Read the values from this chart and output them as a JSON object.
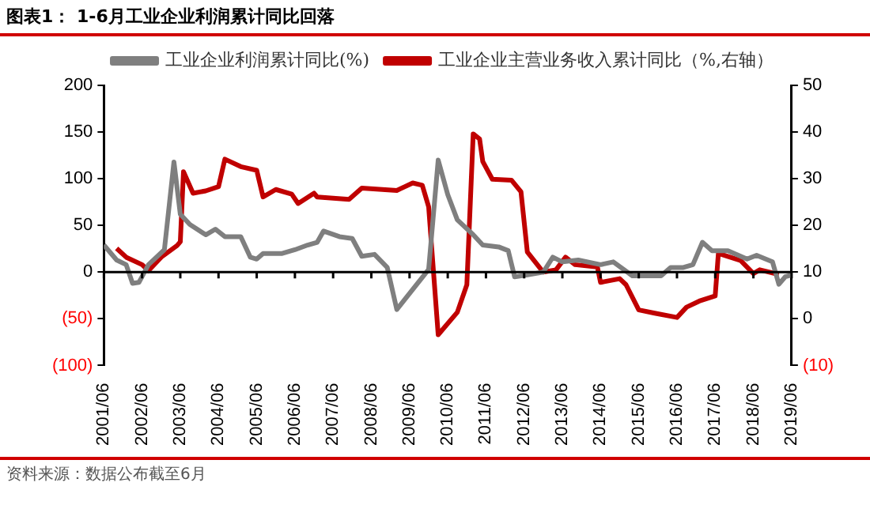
{
  "chart_data": {
    "type": "line",
    "title": "图表1： 1-6月工业企业利润累计同比回落",
    "annotations": [
      "资料来源：数据公布截至6月"
    ],
    "series": [
      {
        "name": "工业企业利润累计同比(%)",
        "color": "#7f7f7f",
        "x": [
          "2001-06",
          "2001-10",
          "2002-01",
          "2002-03",
          "2002-05",
          "2002-08",
          "2003-01",
          "2003-04",
          "2003-06",
          "2003-09",
          "2004-02",
          "2004-05",
          "2004-08",
          "2005-01",
          "2005-04",
          "2005-06",
          "2005-08",
          "2006-02",
          "2006-06",
          "2006-10",
          "2007-01",
          "2007-03",
          "2007-08",
          "2007-12",
          "2008-03",
          "2008-07",
          "2008-11",
          "2009-02",
          "2009-12",
          "2010-03",
          "2010-06",
          "2010-09",
          "2011-02",
          "2011-05",
          "2011-10",
          "2012-01",
          "2012-03",
          "2012-07",
          "2012-12",
          "2013-03",
          "2013-06",
          "2013-11",
          "2014-06",
          "2014-10",
          "2015-04",
          "2016-01",
          "2016-04",
          "2016-08",
          "2016-11",
          "2017-02",
          "2017-05",
          "2017-10",
          "2018-04",
          "2018-07",
          "2018-12",
          "2019-02",
          "2019-04",
          "2019-06"
        ],
        "values": [
          29,
          13,
          8,
          -12,
          -11,
          8,
          24,
          118,
          62,
          51,
          40,
          46,
          38,
          38,
          16,
          14,
          20,
          20,
          24,
          29,
          32,
          44,
          38,
          36,
          17,
          19,
          5,
          -40,
          3,
          120,
          83,
          56,
          40,
          29,
          27,
          23,
          -5,
          -3,
          0,
          16,
          11,
          13,
          8,
          11,
          -4,
          -4,
          5,
          5,
          8,
          32,
          23,
          23,
          14,
          18,
          11,
          -13,
          -5,
          -3
        ]
      },
      {
        "name": "工业企业主营业务收入累计同比（%,右轴）",
        "color": "#c00000",
        "axis": "y2",
        "x": [
          "2001-10",
          "2002-01",
          "2002-06",
          "2002-08",
          "2002-12",
          "2003-05",
          "2003-06",
          "2003-07",
          "2003-10",
          "2004-02",
          "2004-06",
          "2004-08",
          "2005-01",
          "2005-06",
          "2005-08",
          "2005-12",
          "2006-05",
          "2006-07",
          "2006-12",
          "2007-01",
          "2007-11",
          "2008-03",
          "2009-02",
          "2009-07",
          "2009-10",
          "2009-12",
          "2010-03",
          "2010-09",
          "2010-12",
          "2011-02",
          "2011-04",
          "2011-05",
          "2011-08",
          "2012-02",
          "2012-05",
          "2012-07",
          "2012-12",
          "2013-04",
          "2013-07",
          "2013-10",
          "2014-05",
          "2014-06",
          "2014-12",
          "2015-02",
          "2015-06",
          "2015-11",
          "2016-06",
          "2016-09",
          "2017-01",
          "2017-06",
          "2017-07",
          "2018-02",
          "2018-06",
          "2018-08",
          "2019-02"
        ],
        "values": [
          15.1,
          13.2,
          11.6,
          10.3,
          13.2,
          15.7,
          16.5,
          31.5,
          26.9,
          27.4,
          28.3,
          34.2,
          32.6,
          31.8,
          26.1,
          27.7,
          26.7,
          24.7,
          26.9,
          26.1,
          25.6,
          28.0,
          27.5,
          29.1,
          28.6,
          24.0,
          -3.4,
          1.4,
          7.3,
          39.6,
          38.5,
          33.7,
          29.9,
          29.7,
          27.2,
          14.3,
          10,
          10.5,
          13.2,
          11.6,
          11.1,
          7.8,
          8.6,
          7.3,
          1.9,
          1.2,
          0.3,
          2.5,
          3.8,
          4.9,
          14.0,
          12.5,
          9.7,
          10.5,
          9.5
        ]
      }
    ],
    "xlim": [
      "2001-06",
      "2019-06"
    ],
    "xticks": [
      {
        "value": "2001-06",
        "label": "2001/06"
      },
      {
        "value": "2002-06",
        "label": "2002/06"
      },
      {
        "value": "2003-06",
        "label": "2003/06"
      },
      {
        "value": "2004-06",
        "label": "2004/06"
      },
      {
        "value": "2005-06",
        "label": "2005/06"
      },
      {
        "value": "2006-06",
        "label": "2006/06"
      },
      {
        "value": "2007-06",
        "label": "2007/06"
      },
      {
        "value": "2008-06",
        "label": "2008/06"
      },
      {
        "value": "2009-06",
        "label": "2009/06"
      },
      {
        "value": "2010-06",
        "label": "2010/06"
      },
      {
        "value": "2011-06",
        "label": "2011/06"
      },
      {
        "value": "2012-06",
        "label": "2012/06"
      },
      {
        "value": "2013-06",
        "label": "2013/06"
      },
      {
        "value": "2014-06",
        "label": "2014/06"
      },
      {
        "value": "2015-06",
        "label": "2015/06"
      },
      {
        "value": "2016-06",
        "label": "2016/06"
      },
      {
        "value": "2017-06",
        "label": "2017/06"
      },
      {
        "value": "2018-06",
        "label": "2018/06"
      },
      {
        "value": "2019-06",
        "label": "2019/06"
      }
    ],
    "ylim": [
      -100,
      200
    ],
    "yticks": [
      {
        "value": -100,
        "label": "(100)"
      },
      {
        "value": -50,
        "label": "(50)"
      },
      0,
      50,
      100,
      150,
      200
    ],
    "y2lim": [
      -10,
      50
    ],
    "y2ticks": [
      {
        "value": -10,
        "label": "(10)"
      },
      0,
      10,
      20,
      30,
      40,
      50
    ],
    "ref_lines": [
      {
        "axis": "y",
        "value": 0,
        "color": "#000000"
      }
    ],
    "grid": false,
    "legend": "top",
    "marker": "none",
    "line_style": "solid"
  }
}
